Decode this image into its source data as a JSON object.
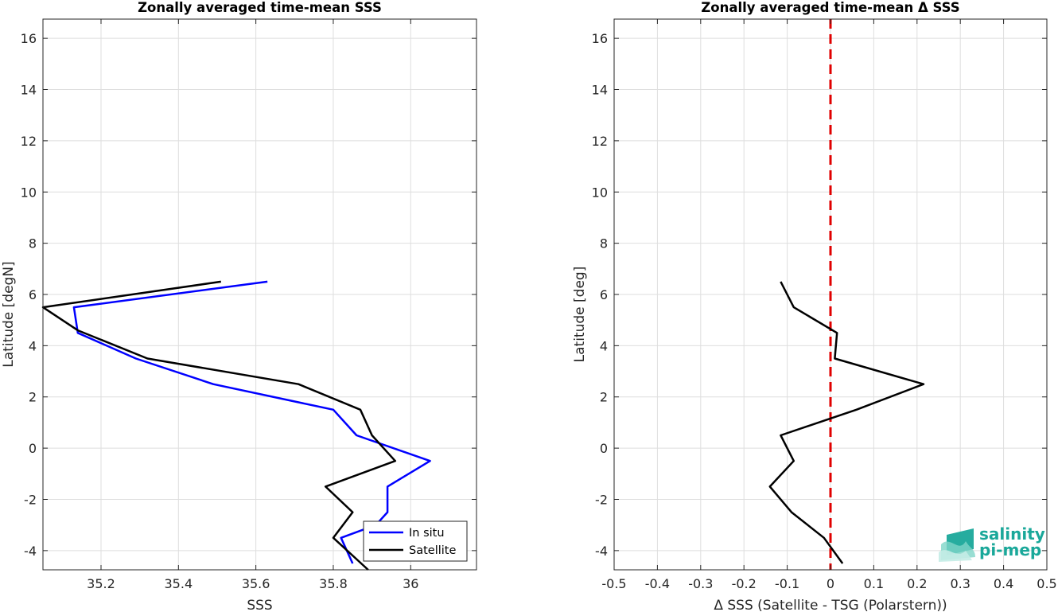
{
  "chart_data": [
    {
      "type": "line",
      "title": "Zonally averaged time-mean SSS",
      "xlabel": "SSS",
      "ylabel": "Latitude [degN]",
      "xlim": [
        35.05,
        36.17
      ],
      "ylim": [
        -4.75,
        16.75
      ],
      "xticks": [
        35.2,
        35.4,
        35.6,
        35.8,
        36
      ],
      "xtick_labels": [
        "35.2",
        "35.4",
        "35.6",
        "35.8",
        "36"
      ],
      "yticks": [
        -4,
        -2,
        0,
        2,
        4,
        6,
        8,
        10,
        12,
        14,
        16
      ],
      "ytick_labels": [
        "-4",
        "-2",
        "0",
        "2",
        "4",
        "6",
        "8",
        "10",
        "12",
        "14",
        "16"
      ],
      "grid": true,
      "legend_position": "bottom-right",
      "series": [
        {
          "name": "In situ",
          "color": "#0000ff",
          "points": [
            [
              35.63,
              6.5
            ],
            [
              35.13,
              5.5
            ],
            [
              35.14,
              4.5
            ],
            [
              35.29,
              3.5
            ],
            [
              35.49,
              2.5
            ],
            [
              35.8,
              1.5
            ],
            [
              35.86,
              0.5
            ],
            [
              36.05,
              -0.5
            ],
            [
              35.94,
              -1.5
            ],
            [
              35.94,
              -2.5
            ],
            [
              35.91,
              -3.0
            ],
            [
              35.82,
              -3.5
            ],
            [
              35.85,
              -4.5
            ]
          ]
        },
        {
          "name": "Satellite",
          "color": "#000000",
          "points": [
            [
              35.51,
              6.5
            ],
            [
              35.05,
              5.5
            ],
            [
              35.14,
              4.6
            ],
            [
              35.32,
              3.5
            ],
            [
              35.71,
              2.5
            ],
            [
              35.87,
              1.5
            ],
            [
              35.9,
              0.5
            ],
            [
              35.96,
              -0.5
            ],
            [
              35.78,
              -1.5
            ],
            [
              35.85,
              -2.5
            ],
            [
              35.8,
              -3.5
            ],
            [
              35.89,
              -4.75
            ]
          ]
        }
      ]
    },
    {
      "type": "line",
      "title": "Zonally averaged time-mean Δ SSS",
      "xlabel": "Δ SSS (Satellite - TSG (Polarstern))",
      "ylabel": "Latitude [deg]",
      "xlim": [
        -0.5,
        0.5
      ],
      "ylim": [
        -4.75,
        16.75
      ],
      "xticks": [
        -0.5,
        -0.4,
        -0.3,
        -0.2,
        -0.1,
        0,
        0.1,
        0.2,
        0.3,
        0.4,
        0.5
      ],
      "xtick_labels": [
        "-0.5",
        "-0.4",
        "-0.3",
        "-0.2",
        "-0.1",
        "0",
        "0.1",
        "0.2",
        "0.3",
        "0.4",
        "0.5"
      ],
      "yticks": [
        -4,
        -2,
        0,
        2,
        4,
        6,
        8,
        10,
        12,
        14,
        16
      ],
      "ytick_labels": [
        "-4",
        "-2",
        "0",
        "2",
        "4",
        "6",
        "8",
        "10",
        "12",
        "14",
        "16"
      ],
      "grid": true,
      "reference_line": {
        "x": 0,
        "color": "#e00000",
        "style": "dashed"
      },
      "series": [
        {
          "color": "#000000",
          "points": [
            [
              -0.115,
              6.5
            ],
            [
              -0.085,
              5.5
            ],
            [
              0.015,
              4.5
            ],
            [
              0.01,
              3.5
            ],
            [
              0.215,
              2.5
            ],
            [
              0.06,
              1.5
            ],
            [
              -0.115,
              0.5
            ],
            [
              -0.085,
              -0.5
            ],
            [
              -0.14,
              -1.5
            ],
            [
              -0.09,
              -2.5
            ],
            [
              -0.015,
              -3.5
            ],
            [
              0.028,
              -4.5
            ]
          ]
        }
      ]
    }
  ],
  "logo": {
    "line1": "salinity",
    "line2": "pi-mep",
    "color": "#1aa89a"
  }
}
